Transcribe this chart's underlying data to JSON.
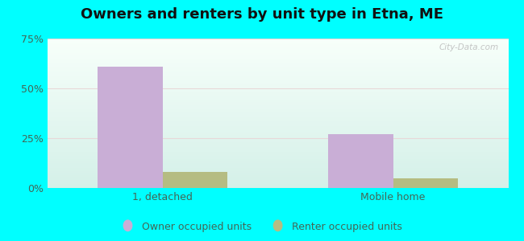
{
  "title": "Owners and renters by unit type in Etna, ME",
  "categories": [
    "1, detached",
    "Mobile home"
  ],
  "owner_values": [
    61,
    27
  ],
  "renter_values": [
    8,
    5
  ],
  "owner_color": "#c9aed6",
  "renter_color": "#b5bc82",
  "ylim": [
    0,
    75
  ],
  "yticks": [
    0,
    25,
    50,
    75
  ],
  "yticklabels": [
    "0%",
    "25%",
    "50%",
    "75%"
  ],
  "background_outer": "#00ffff",
  "bg_top_color": "#f0faf5",
  "bg_bottom_color": "#d8f5ee",
  "title_fontsize": 13,
  "label_fontsize": 9,
  "legend_fontsize": 9,
  "bar_width": 0.28,
  "watermark": "City-Data.com",
  "grid_color": "#e8d0d0",
  "tick_color": "#557766",
  "label_color": "#446655"
}
